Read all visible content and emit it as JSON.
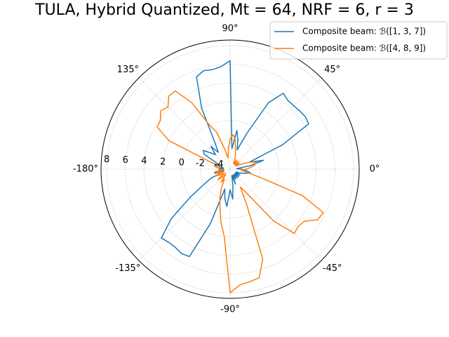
{
  "chart_data": {
    "type": "polar",
    "title": "TULA, Hybrid Quantized, Mt = 64, NRF = 6, r = 3",
    "x": [
      -180,
      -175,
      -170,
      -165,
      -160,
      -155,
      -150,
      -145,
      -140,
      -135,
      -130,
      -125,
      -120,
      -115,
      -110,
      -105,
      -100,
      -95,
      -90,
      -85,
      -80,
      -75,
      -70,
      -65,
      -60,
      -55,
      -50,
      -45,
      -40,
      -35,
      -30,
      -25,
      -20,
      -15,
      -10,
      -5,
      0,
      5,
      10,
      15,
      20,
      25,
      30,
      35,
      40,
      45,
      50,
      55,
      60,
      65,
      70,
      75,
      80,
      85,
      90,
      95,
      100,
      105,
      110,
      115,
      120,
      125,
      130,
      135,
      140,
      145,
      150,
      155,
      160,
      165,
      170,
      175
    ],
    "series": [
      {
        "name": "Composite beam: ℬ([1, 3, 7])",
        "color": "#1f77b4",
        "values": [
          -4.5,
          -4,
          -4.5,
          -3.5,
          -4.5,
          -3,
          -2,
          0,
          3,
          5.2,
          5.0,
          5.0,
          5.2,
          5.1,
          1,
          -3,
          -2,
          -1.2,
          -3,
          -2,
          -3.5,
          -4.5,
          -3.5,
          -4.5,
          -4,
          -4.5,
          -4,
          -4.5,
          -4,
          -4.5,
          -4,
          -4.5,
          -4,
          -3.5,
          -3,
          -3.5,
          -4,
          -4.5,
          -3,
          -1.5,
          -3,
          1,
          4.5,
          4.6,
          4.5,
          4.4,
          4.4,
          4.7,
          3,
          -1,
          -3,
          -2,
          -1,
          -3,
          6.4,
          5.8,
          5.6,
          5.7,
          5.3,
          2,
          -2,
          -3,
          -2,
          -3,
          -2.5,
          -1.7,
          -2,
          -3.5,
          -4,
          -3.5,
          -4.5,
          -4
        ]
      },
      {
        "name": "Composite beam: ℬ([4, 8, 9])",
        "color": "#ff7f0e",
        "values": [
          -4,
          -4.5,
          -3.5,
          -4,
          -4.5,
          -3.5,
          -4,
          -4.5,
          -3.5,
          -4,
          -4.5,
          -3.5,
          -4,
          -3,
          -2,
          -1,
          0.5,
          2,
          8.0,
          7.2,
          7.0,
          6.8,
          5,
          -1,
          -3,
          -2,
          2,
          4.5,
          4.3,
          4.5,
          5.6,
          5.8,
          3,
          -2,
          -3.5,
          -4,
          -3.5,
          -3,
          -2.5,
          -2.3,
          -3,
          -4,
          -4.5,
          -4,
          -4.5,
          -4,
          -4.5,
          -4,
          -4.5,
          -4,
          -3.5,
          -3,
          -2,
          -1.5,
          -2,
          -3,
          -4,
          -3,
          -1,
          0,
          3,
          5.0,
          5.0,
          4.2,
          4.5,
          3.9,
          3.8,
          2,
          -3,
          -4,
          -3.5,
          -4
        ]
      }
    ],
    "ylim": [
      -5.2,
      8.6
    ],
    "yticks": [
      -4,
      -2,
      0,
      2,
      4,
      6,
      8
    ],
    "xticks": [
      {
        "value": 0,
        "label": "0°"
      },
      {
        "value": 45,
        "label": "45°"
      },
      {
        "value": 90,
        "label": "90°"
      },
      {
        "value": 135,
        "label": "135°"
      },
      {
        "value": -180,
        "label": "-180°"
      },
      {
        "value": -135,
        "label": "-135°"
      },
      {
        "value": -90,
        "label": "-90°"
      },
      {
        "value": -45,
        "label": "-45°"
      }
    ],
    "grid": true,
    "legend": "upper right"
  }
}
